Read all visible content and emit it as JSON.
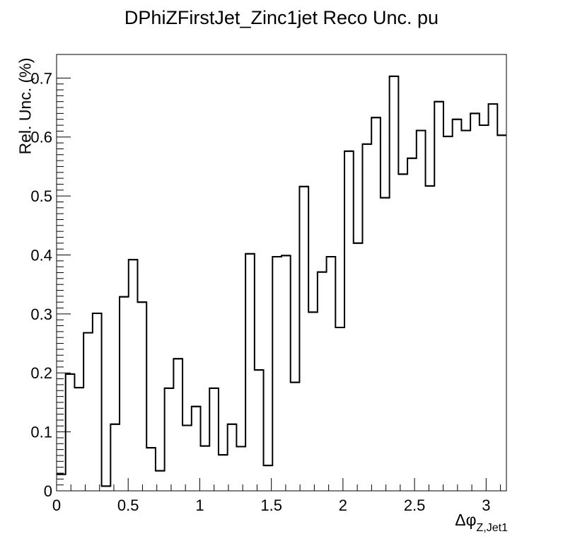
{
  "chart_data": {
    "type": "histogram-step",
    "title": "DPhiZFirstJet_Zinc1jet Reco Unc. pu",
    "ylabel": "Rel. Unc. (%)",
    "xlabel_main": "Δφ",
    "xlabel_sub": "Z,Jet1",
    "xlim": [
      0,
      3.1416
    ],
    "ylim": [
      0,
      0.74
    ],
    "x_ticks": [
      0,
      0.5,
      1,
      1.5,
      2,
      2.5,
      3
    ],
    "x_tick_labels": [
      "0",
      "0.5",
      "1",
      "1.5",
      "2",
      "2.5",
      "3"
    ],
    "y_ticks": [
      0,
      0.1,
      0.2,
      0.3,
      0.4,
      0.5,
      0.6,
      0.7
    ],
    "y_tick_labels": [
      "0",
      "0.1",
      "0.2",
      "0.3",
      "0.4",
      "0.5",
      "0.6",
      "0.7"
    ],
    "n_bins": 50,
    "values": [
      0.028,
      0.198,
      0.175,
      0.268,
      0.301,
      0.008,
      0.113,
      0.329,
      0.392,
      0.32,
      0.073,
      0.034,
      0.174,
      0.224,
      0.111,
      0.143,
      0.076,
      0.174,
      0.061,
      0.113,
      0.075,
      0.402,
      0.205,
      0.043,
      0.397,
      0.399,
      0.184,
      0.516,
      0.303,
      0.371,
      0.397,
      0.277,
      0.576,
      0.42,
      0.588,
      0.633,
      0.497,
      0.703,
      0.537,
      0.564,
      0.611,
      0.517,
      0.66,
      0.601,
      0.63,
      0.611,
      0.64,
      0.62,
      0.656,
      0.603
    ],
    "line_color": "#000000"
  }
}
